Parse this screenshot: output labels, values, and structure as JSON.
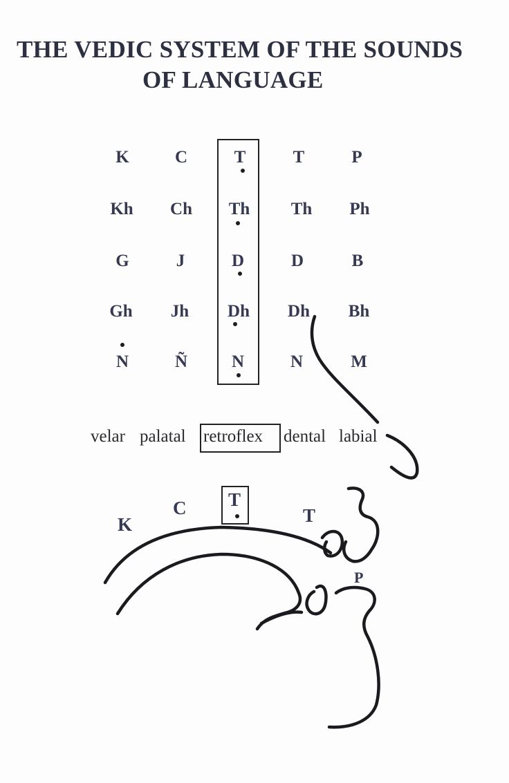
{
  "title": {
    "line1": "THE VEDIC SYSTEM OF THE SOUNDS",
    "line2": "OF LANGUAGE"
  },
  "consonant_grid": {
    "rows": [
      [
        "K",
        "C",
        "T",
        "T",
        "P"
      ],
      [
        "Kh",
        "Ch",
        "Th",
        "Th",
        "Ph"
      ],
      [
        "G",
        "J",
        "D",
        "D",
        "B"
      ],
      [
        "Gh",
        "Jh",
        "Dh",
        "Dh",
        "Bh"
      ],
      [
        "N",
        "Ñ",
        "N",
        "N",
        "M"
      ]
    ]
  },
  "places": [
    "velar",
    "palatal",
    "retroflex",
    "dental",
    "labial"
  ],
  "mouth_diagram": {
    "letters": [
      "K",
      "C",
      "T",
      "T",
      "P"
    ]
  }
}
